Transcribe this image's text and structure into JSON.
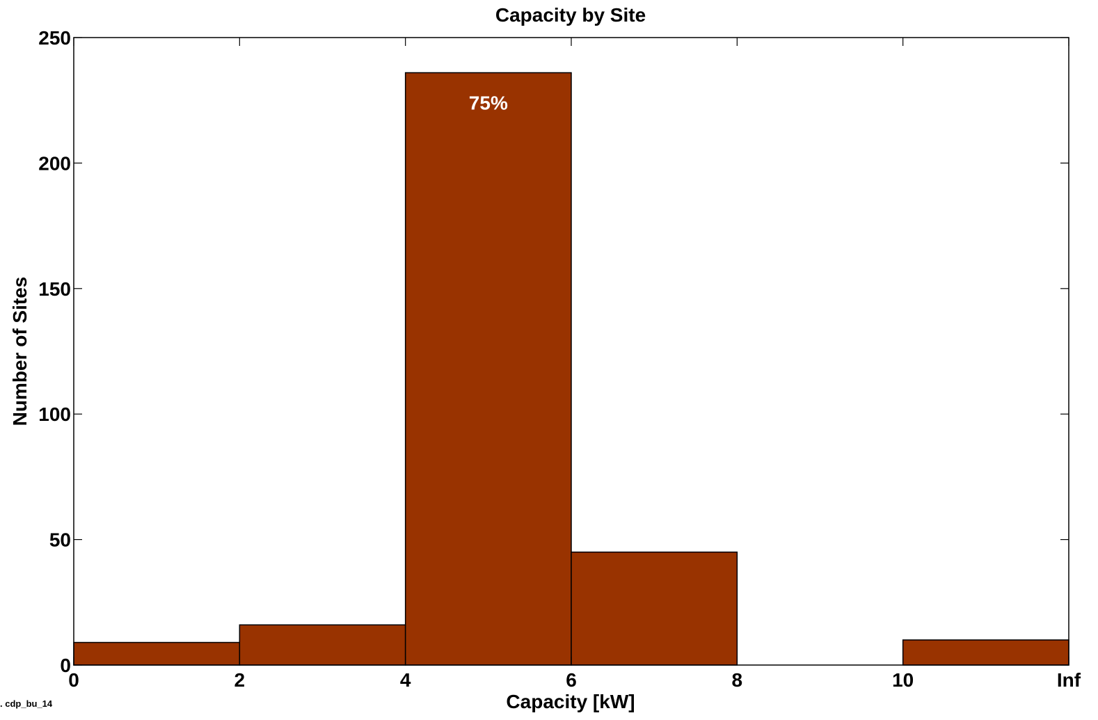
{
  "chart_data": {
    "type": "bar",
    "title": "Capacity by Site",
    "xlabel": "Capacity [kW]",
    "ylabel": "Number of Sites",
    "bins": [
      [
        0,
        2
      ],
      [
        2,
        4
      ],
      [
        4,
        6
      ],
      [
        6,
        8
      ],
      [
        8,
        10
      ],
      [
        10,
        "Inf"
      ]
    ],
    "values": [
      9,
      16,
      236,
      45,
      0,
      10
    ],
    "x_ticks": [
      "0",
      "2",
      "4",
      "6",
      "8",
      "10",
      "Inf"
    ],
    "y_ticks": [
      0,
      50,
      100,
      150,
      200,
      250
    ],
    "ylim": [
      0,
      250
    ],
    "grid": false,
    "legend": "none",
    "annotations": [
      {
        "bin": 2,
        "text": "75%"
      }
    ],
    "bar_color": "#993300",
    "edge_color": "#000000"
  },
  "footer": {
    "label": ". cdp_bu_14"
  }
}
